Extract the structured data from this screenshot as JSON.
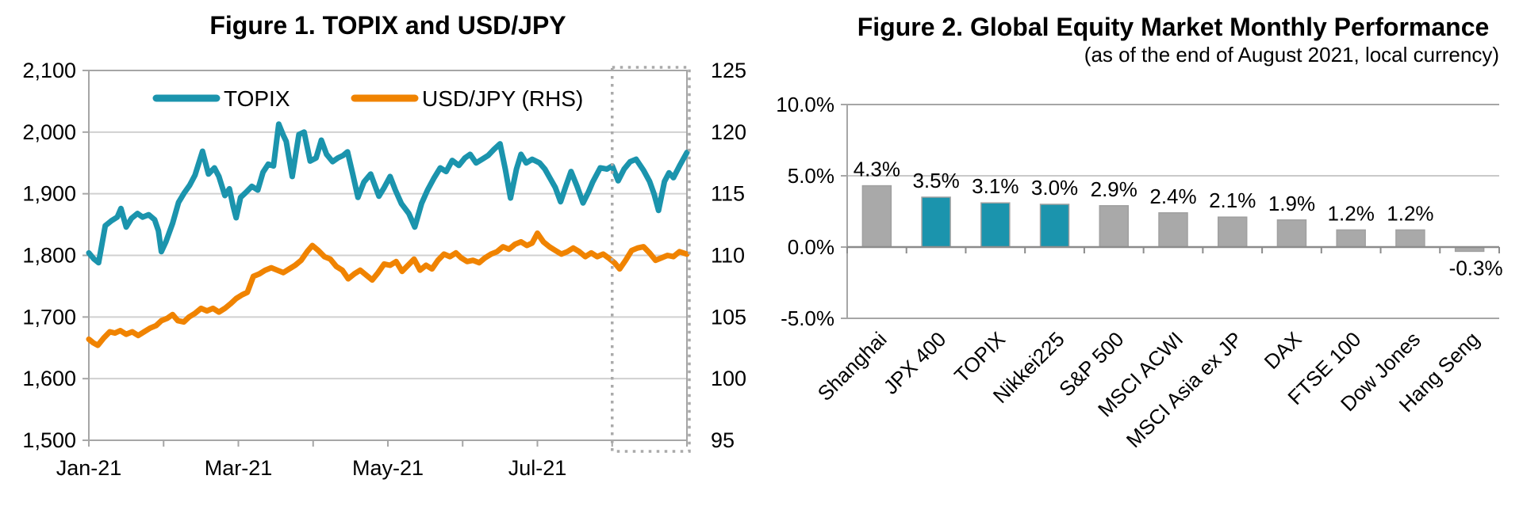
{
  "page": {
    "background": "#FFFFFF"
  },
  "chart_data": [
    {
      "type": "line",
      "title": "Figure 1. TOPIX and USD/JPY",
      "grid": "horizontal",
      "legend": {
        "position": "top-inside",
        "entries": [
          "TOPIX",
          "USD/JPY (RHS)"
        ]
      },
      "x_axis": {
        "unit": "months since 1 Jan 2021",
        "range_months": [
          0,
          8
        ],
        "tick_label_positions": [
          0,
          2,
          4,
          6
        ],
        "tick_labels": [
          "Jan-21",
          "Mar-21",
          "May-21",
          "Jul-21"
        ],
        "minor_tick_positions": [
          0,
          1,
          2,
          3,
          4,
          5,
          6,
          7,
          8
        ]
      },
      "left_axis": {
        "series": "TOPIX",
        "range": [
          1500,
          2100
        ],
        "tick_values": [
          1500,
          1600,
          1700,
          1800,
          1900,
          2000,
          2100
        ],
        "tick_labels": [
          "1,500",
          "1,600",
          "1,700",
          "1,800",
          "1,900",
          "2,000",
          "2,100"
        ]
      },
      "right_axis": {
        "series": "USD/JPY",
        "range": [
          95,
          125
        ],
        "tick_values": [
          95,
          100,
          105,
          110,
          115,
          120,
          125
        ],
        "tick_labels": [
          "95",
          "100",
          "105",
          "110",
          "115",
          "120",
          "125"
        ]
      },
      "highlight_box": {
        "style": "dashed",
        "x_from_month": 7,
        "x_to_month": 8,
        "meaning": "August 2021"
      },
      "colors": {
        "teal": "#1B94AD",
        "orange": "#F08300",
        "grid": "#D0D0D0",
        "border": "#A6A6A6",
        "dashed_box": "#AAAAAA"
      },
      "series": [
        {
          "name": "TOPIX",
          "axis": "left",
          "color": "#1B94AD",
          "points": [
            [
              0,
              1804
            ],
            [
              0.07,
              1794
            ],
            [
              0.13,
              1788
            ],
            [
              0.22,
              1848
            ],
            [
              0.3,
              1856
            ],
            [
              0.38,
              1862
            ],
            [
              0.43,
              1876
            ],
            [
              0.5,
              1846
            ],
            [
              0.57,
              1860
            ],
            [
              0.65,
              1868
            ],
            [
              0.72,
              1862
            ],
            [
              0.8,
              1866
            ],
            [
              0.88,
              1858
            ],
            [
              0.93,
              1840
            ],
            [
              0.97,
              1806
            ],
            [
              1.03,
              1822
            ],
            [
              1.12,
              1852
            ],
            [
              1.2,
              1886
            ],
            [
              1.28,
              1902
            ],
            [
              1.35,
              1914
            ],
            [
              1.42,
              1930
            ],
            [
              1.52,
              1969
            ],
            [
              1.6,
              1932
            ],
            [
              1.68,
              1942
            ],
            [
              1.74,
              1928
            ],
            [
              1.82,
              1897
            ],
            [
              1.88,
              1908
            ],
            [
              1.93,
              1880
            ],
            [
              1.97,
              1861
            ],
            [
              2.03,
              1894
            ],
            [
              2.1,
              1902
            ],
            [
              2.18,
              1912
            ],
            [
              2.26,
              1906
            ],
            [
              2.33,
              1935
            ],
            [
              2.4,
              1948
            ],
            [
              2.47,
              1945
            ],
            [
              2.54,
              2013
            ],
            [
              2.6,
              1995
            ],
            [
              2.64,
              1985
            ],
            [
              2.72,
              1928
            ],
            [
              2.81,
              1996
            ],
            [
              2.88,
              2000
            ],
            [
              2.96,
              1953
            ],
            [
              3.04,
              1958
            ],
            [
              3.11,
              1987
            ],
            [
              3.18,
              1964
            ],
            [
              3.26,
              1952
            ],
            [
              3.33,
              1958
            ],
            [
              3.4,
              1962
            ],
            [
              3.46,
              1968
            ],
            [
              3.53,
              1932
            ],
            [
              3.6,
              1894
            ],
            [
              3.68,
              1919
            ],
            [
              3.77,
              1932
            ],
            [
              3.88,
              1896
            ],
            [
              3.95,
              1910
            ],
            [
              4.03,
              1928
            ],
            [
              4.1,
              1906
            ],
            [
              4.18,
              1884
            ],
            [
              4.28,
              1868
            ],
            [
              4.36,
              1846
            ],
            [
              4.45,
              1884
            ],
            [
              4.53,
              1906
            ],
            [
              4.62,
              1926
            ],
            [
              4.7,
              1942
            ],
            [
              4.78,
              1936
            ],
            [
              4.86,
              1954
            ],
            [
              4.95,
              1946
            ],
            [
              5.03,
              1958
            ],
            [
              5.1,
              1964
            ],
            [
              5.18,
              1950
            ],
            [
              5.26,
              1956
            ],
            [
              5.34,
              1962
            ],
            [
              5.42,
              1972
            ],
            [
              5.5,
              1981
            ],
            [
              5.57,
              1940
            ],
            [
              5.64,
              1893
            ],
            [
              5.72,
              1940
            ],
            [
              5.78,
              1964
            ],
            [
              5.85,
              1950
            ],
            [
              5.93,
              1956
            ],
            [
              6.03,
              1950
            ],
            [
              6.1,
              1940
            ],
            [
              6.17,
              1925
            ],
            [
              6.24,
              1910
            ],
            [
              6.31,
              1887
            ],
            [
              6.38,
              1912
            ],
            [
              6.45,
              1936
            ],
            [
              6.53,
              1912
            ],
            [
              6.61,
              1885
            ],
            [
              6.68,
              1902
            ],
            [
              6.74,
              1919
            ],
            [
              6.84,
              1942
            ],
            [
              6.93,
              1940
            ],
            [
              7,
              1945
            ],
            [
              7.08,
              1921
            ],
            [
              7.16,
              1940
            ],
            [
              7.24,
              1952
            ],
            [
              7.32,
              1956
            ],
            [
              7.42,
              1938
            ],
            [
              7.5,
              1920
            ],
            [
              7.56,
              1900
            ],
            [
              7.62,
              1873
            ],
            [
              7.7,
              1920
            ],
            [
              7.76,
              1934
            ],
            [
              7.82,
              1926
            ],
            [
              7.9,
              1945
            ],
            [
              8,
              1967
            ]
          ]
        },
        {
          "name": "USD/JPY (RHS)",
          "axis": "right",
          "color": "#F08300",
          "points": [
            [
              0,
              103.2
            ],
            [
              0.06,
              102.9
            ],
            [
              0.12,
              102.7
            ],
            [
              0.2,
              103.3
            ],
            [
              0.28,
              103.8
            ],
            [
              0.35,
              103.7
            ],
            [
              0.42,
              103.9
            ],
            [
              0.5,
              103.6
            ],
            [
              0.58,
              103.8
            ],
            [
              0.66,
              103.5
            ],
            [
              0.74,
              103.8
            ],
            [
              0.82,
              104.1
            ],
            [
              0.9,
              104.3
            ],
            [
              0.97,
              104.7
            ],
            [
              1.05,
              104.9
            ],
            [
              1.12,
              105.2
            ],
            [
              1.19,
              104.7
            ],
            [
              1.27,
              104.6
            ],
            [
              1.34,
              105
            ],
            [
              1.42,
              105.3
            ],
            [
              1.5,
              105.7
            ],
            [
              1.58,
              105.5
            ],
            [
              1.66,
              105.7
            ],
            [
              1.74,
              105.4
            ],
            [
              1.82,
              105.7
            ],
            [
              1.9,
              106.1
            ],
            [
              1.97,
              106.5
            ],
            [
              2.05,
              106.8
            ],
            [
              2.12,
              107
            ],
            [
              2.2,
              108.3
            ],
            [
              2.28,
              108.5
            ],
            [
              2.36,
              108.8
            ],
            [
              2.44,
              109
            ],
            [
              2.52,
              108.8
            ],
            [
              2.6,
              108.6
            ],
            [
              2.68,
              108.9
            ],
            [
              2.76,
              109.2
            ],
            [
              2.84,
              109.6
            ],
            [
              2.92,
              110.3
            ],
            [
              2.99,
              110.8
            ],
            [
              3.07,
              110.4
            ],
            [
              3.15,
              109.9
            ],
            [
              3.23,
              109.7
            ],
            [
              3.31,
              109.1
            ],
            [
              3.39,
              108.8
            ],
            [
              3.47,
              108.1
            ],
            [
              3.55,
              108.5
            ],
            [
              3.63,
              108.8
            ],
            [
              3.71,
              108.4
            ],
            [
              3.79,
              108
            ],
            [
              3.87,
              108.6
            ],
            [
              3.95,
              109.3
            ],
            [
              4.03,
              109.2
            ],
            [
              4.11,
              109.5
            ],
            [
              4.19,
              108.7
            ],
            [
              4.27,
              109.2
            ],
            [
              4.35,
              109.7
            ],
            [
              4.43,
              108.8
            ],
            [
              4.51,
              109.2
            ],
            [
              4.59,
              108.9
            ],
            [
              4.67,
              109.6
            ],
            [
              4.75,
              110.1
            ],
            [
              4.83,
              109.9
            ],
            [
              4.91,
              110.2
            ],
            [
              4.98,
              109.8
            ],
            [
              5.06,
              109.5
            ],
            [
              5.14,
              109.6
            ],
            [
              5.22,
              109.4
            ],
            [
              5.3,
              109.8
            ],
            [
              5.38,
              110.1
            ],
            [
              5.46,
              110.3
            ],
            [
              5.54,
              110.7
            ],
            [
              5.62,
              110.5
            ],
            [
              5.7,
              110.9
            ],
            [
              5.78,
              111.1
            ],
            [
              5.86,
              110.8
            ],
            [
              5.93,
              111
            ],
            [
              6,
              111.8
            ],
            [
              6.08,
              111.1
            ],
            [
              6.16,
              110.7
            ],
            [
              6.24,
              110.4
            ],
            [
              6.32,
              110.1
            ],
            [
              6.4,
              110.3
            ],
            [
              6.48,
              110.6
            ],
            [
              6.56,
              110.3
            ],
            [
              6.64,
              109.9
            ],
            [
              6.72,
              110.2
            ],
            [
              6.8,
              109.9
            ],
            [
              6.88,
              110.1
            ],
            [
              6.95,
              109.8
            ],
            [
              7.03,
              109.4
            ],
            [
              7.1,
              108.9
            ],
            [
              7.18,
              109.6
            ],
            [
              7.26,
              110.4
            ],
            [
              7.34,
              110.6
            ],
            [
              7.42,
              110.7
            ],
            [
              7.5,
              110.2
            ],
            [
              7.58,
              109.6
            ],
            [
              7.66,
              109.8
            ],
            [
              7.74,
              110
            ],
            [
              7.82,
              109.9
            ],
            [
              7.9,
              110.3
            ],
            [
              8,
              110.1
            ]
          ]
        }
      ]
    },
    {
      "type": "bar",
      "title": "Figure 2. Global Equity Market Monthly Performance",
      "subtitle": "(as of the end of August 2021, local currency)",
      "categories": [
        "Shanghai",
        "JPX 400",
        "TOPIX",
        "Nikkei225",
        "S&P 500",
        "MSCI ACWI",
        "MSCI Asia ex JP",
        "DAX",
        "FTSE 100",
        "Dow Jones",
        "Hang Seng"
      ],
      "values": [
        4.3,
        3.5,
        3.1,
        3.0,
        2.9,
        2.4,
        2.1,
        1.9,
        1.2,
        1.2,
        -0.3
      ],
      "value_labels": [
        "4.3%",
        "3.5%",
        "3.1%",
        "3.0%",
        "2.9%",
        "2.4%",
        "2.1%",
        "1.9%",
        "1.2%",
        "1.2%",
        "-0.3%"
      ],
      "bar_color_keys": [
        "gray",
        "teal",
        "teal",
        "teal",
        "gray",
        "gray",
        "gray",
        "gray",
        "gray",
        "gray",
        "gray"
      ],
      "colors": {
        "teal": "#1B94AD",
        "gray": "#A9A9A9"
      },
      "ylim": [
        -5,
        10
      ],
      "grid": "horizontal",
      "y_axis": {
        "tick_values": [
          10,
          5,
          0,
          -5
        ],
        "tick_labels": [
          "10.0%",
          "5.0%",
          "0.0%",
          "-5.0%"
        ]
      }
    }
  ]
}
